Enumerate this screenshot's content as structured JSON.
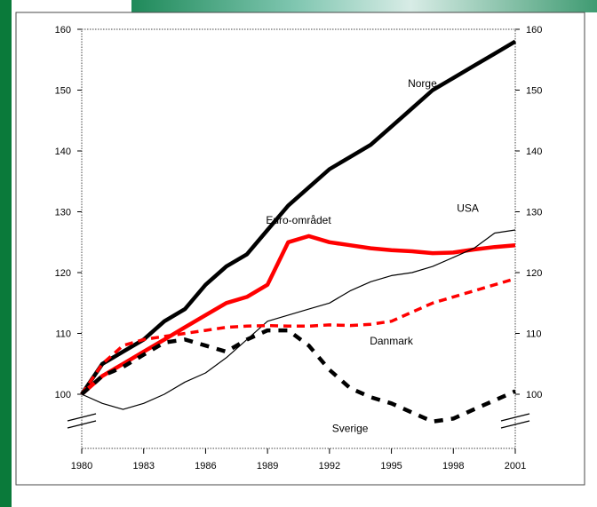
{
  "chart_data": {
    "type": "line",
    "title": "",
    "xlabel": "",
    "ylabel": "",
    "xlim": [
      1980,
      2001
    ],
    "ylim": [
      100,
      160
    ],
    "x_ticks": [
      "1980",
      "1983",
      "1986",
      "1989",
      "1992",
      "1995",
      "1998",
      "2001"
    ],
    "y_ticks": [
      "100",
      "110",
      "120",
      "130",
      "140",
      "150",
      "160"
    ],
    "y_axis_both_sides": true,
    "grid": false,
    "legend": "inline labels",
    "series": [
      {
        "name": "Norge",
        "color": "#000000",
        "style": "solid-thick",
        "x": [
          1980,
          1981,
          1982,
          1983,
          1984,
          1985,
          1986,
          1987,
          1988,
          1989,
          1990,
          1991,
          1992,
          1993,
          1994,
          1995,
          1996,
          1997,
          1998,
          1999,
          2000,
          2001
        ],
        "y": [
          100,
          105,
          107,
          109,
          112,
          114,
          118,
          121,
          123,
          127,
          131,
          134,
          137,
          139,
          141,
          144,
          147,
          150,
          152,
          154,
          156,
          158
        ]
      },
      {
        "name": "Euro-området",
        "color": "#ff0000",
        "style": "solid-thick",
        "x": [
          1980,
          1981,
          1982,
          1983,
          1984,
          1985,
          1986,
          1987,
          1988,
          1989,
          1990,
          1991,
          1992,
          1993,
          1994,
          1995,
          1996,
          1997,
          1998,
          1999,
          2000,
          2001
        ],
        "y": [
          100,
          103,
          105,
          107,
          109,
          111,
          113,
          115,
          116,
          118,
          125,
          126,
          125,
          124.5,
          124,
          123.7,
          123.5,
          123.2,
          123.3,
          123.8,
          124.2,
          124.5
        ]
      },
      {
        "name": "USA",
        "color": "#000000",
        "style": "solid-thin",
        "x": [
          1980,
          1981,
          1982,
          1983,
          1984,
          1985,
          1986,
          1987,
          1988,
          1989,
          1990,
          1991,
          1992,
          1993,
          1994,
          1995,
          1996,
          1997,
          1998,
          1999,
          2000,
          2001
        ],
        "y": [
          100,
          98.5,
          97.5,
          98.5,
          100,
          102,
          103.5,
          106,
          109,
          112,
          113,
          114,
          115,
          117,
          118.5,
          119.5,
          120,
          121,
          122.5,
          124,
          126.5,
          127
        ]
      },
      {
        "name": "Danmark",
        "color": "#ff0000",
        "style": "dashed",
        "x": [
          1980,
          1981,
          1982,
          1983,
          1984,
          1985,
          1986,
          1987,
          1988,
          1989,
          1990,
          1991,
          1992,
          1993,
          1994,
          1995,
          1996,
          1997,
          1998,
          1999,
          2000,
          2001
        ],
        "y": [
          100,
          105,
          108,
          109,
          109.5,
          110,
          110.5,
          111,
          111.2,
          111.3,
          111.2,
          111.2,
          111.4,
          111.3,
          111.5,
          112,
          113.5,
          115,
          116,
          117,
          118,
          119
        ]
      },
      {
        "name": "Sverige",
        "color": "#000000",
        "style": "dashed-thick",
        "x": [
          1980,
          1981,
          1982,
          1983,
          1984,
          1985,
          1986,
          1987,
          1988,
          1989,
          1990,
          1991,
          1992,
          1993,
          1994,
          1995,
          1996,
          1997,
          1998,
          1999,
          2000,
          2001
        ],
        "y": [
          100,
          103,
          104.5,
          106.5,
          108.5,
          109,
          108,
          107,
          109,
          110.5,
          110.5,
          108,
          104,
          101,
          99.5,
          98.5,
          97,
          95.5,
          96,
          97.5,
          99,
          100.5
        ]
      }
    ]
  }
}
